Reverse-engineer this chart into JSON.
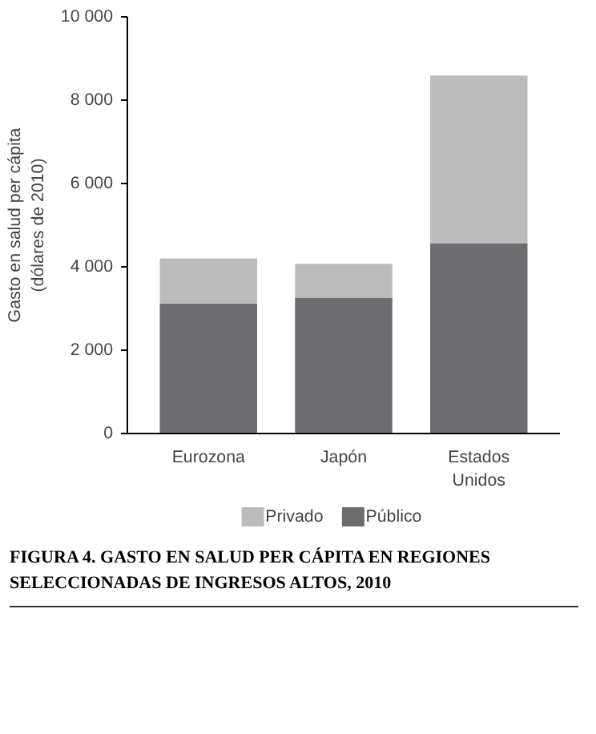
{
  "chart_data": {
    "type": "bar",
    "stacked": true,
    "title": "FIGURA 4. GASTO EN SALUD PER CÁPITA EN REGIONES SELECCIONADAS DE INGRESOS ALTOS, 2010",
    "ylabel": "Gasto en salud per cápita (dólares de 2010)",
    "categories": [
      "Eurozona",
      "Japón",
      "Estados Unidos"
    ],
    "series": [
      {
        "name": "Público",
        "color": "#6d6d6f",
        "values": [
          3120,
          3250,
          4560
        ]
      },
      {
        "name": "Privado",
        "color": "#bcbcbd",
        "values": [
          1080,
          820,
          4030
        ]
      }
    ],
    "ylim": [
      0,
      10000
    ],
    "yticks": [
      0,
      {
        "value": 2000,
        "label": "2 000"
      },
      {
        "value": 4000,
        "label": "4 000"
      },
      {
        "value": 6000,
        "label": "6 000"
      },
      {
        "value": 8000,
        "label": "8 000"
      },
      {
        "value": 10000,
        "label": "10 000"
      }
    ],
    "grid": false,
    "legend": "bottom"
  }
}
